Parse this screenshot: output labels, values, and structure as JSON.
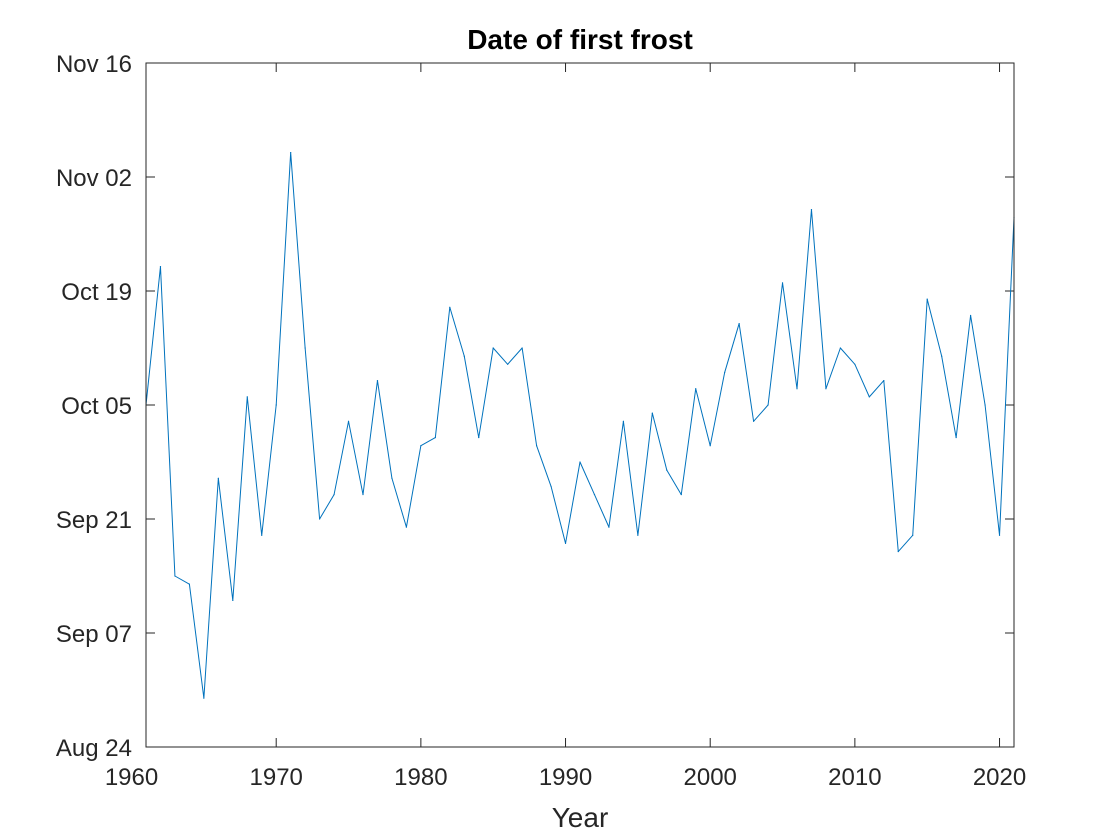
{
  "chart_data": {
    "type": "line",
    "title": "Date of first frost",
    "xlabel": "Year",
    "ylabel": "",
    "xlim": [
      1961,
      2021
    ],
    "ylim": [
      "2021-08-24",
      "2021-11-16"
    ],
    "x_ticks": [
      "1960",
      "1970",
      "1980",
      "1990",
      "2000",
      "2010",
      "2020"
    ],
    "x_tick_values": [
      1960,
      1970,
      1980,
      1990,
      2000,
      2010,
      2020
    ],
    "y_ticks": [
      "Aug 24",
      "Sep 07",
      "Sep 21",
      "Oct 05",
      "Oct 19",
      "Nov 02",
      "Nov 16"
    ],
    "y_tick_values": [
      "2021-08-24",
      "2021-09-07",
      "2021-09-21",
      "2021-10-05",
      "2021-10-19",
      "2021-11-02",
      "2021-11-16"
    ],
    "grid": false,
    "box": true,
    "series": [
      {
        "color": "#0072BD",
        "x": [
          1961,
          1962,
          1963,
          1964,
          1965,
          1966,
          1967,
          1968,
          1969,
          1970,
          1971,
          1972,
          1973,
          1974,
          1975,
          1976,
          1977,
          1978,
          1979,
          1980,
          1981,
          1982,
          1983,
          1984,
          1985,
          1986,
          1987,
          1988,
          1989,
          1990,
          1991,
          1992,
          1993,
          1994,
          1995,
          1996,
          1997,
          1998,
          1999,
          2000,
          2001,
          2002,
          2003,
          2004,
          2005,
          2006,
          2007,
          2008,
          2009,
          2010,
          2011,
          2012,
          2013,
          2014,
          2015,
          2016,
          2017,
          2018,
          2019,
          2020,
          2021
        ],
        "y": [
          "2021-10-05",
          "2021-10-22",
          "2021-09-14",
          "2021-09-13",
          "2021-08-30",
          "2021-09-26",
          "2021-09-11",
          "2021-10-06",
          "2021-09-19",
          "2021-10-05",
          "2021-11-05",
          "2021-10-12",
          "2021-09-21",
          "2021-09-24",
          "2021-10-03",
          "2021-09-24",
          "2021-10-08",
          "2021-09-26",
          "2021-09-20",
          "2021-09-30",
          "2021-10-01",
          "2021-10-17",
          "2021-10-11",
          "2021-10-01",
          "2021-10-12",
          "2021-10-10",
          "2021-10-12",
          "2021-09-30",
          "2021-09-25",
          "2021-09-18",
          "2021-09-28",
          "2021-09-24",
          "2021-09-20",
          "2021-10-03",
          "2021-09-19",
          "2021-10-04",
          "2021-09-27",
          "2021-09-24",
          "2021-10-07",
          "2021-09-30",
          "2021-10-09",
          "2021-10-15",
          "2021-10-03",
          "2021-10-05",
          "2021-10-20",
          "2021-10-07",
          "2021-10-29",
          "2021-10-07",
          "2021-10-12",
          "2021-10-10",
          "2021-10-06",
          "2021-10-08",
          "2021-09-17",
          "2021-09-19",
          "2021-10-18",
          "2021-10-11",
          "2021-10-01",
          "2021-10-16",
          "2021-10-05",
          "2021-09-19",
          "2021-10-28"
        ]
      }
    ]
  }
}
